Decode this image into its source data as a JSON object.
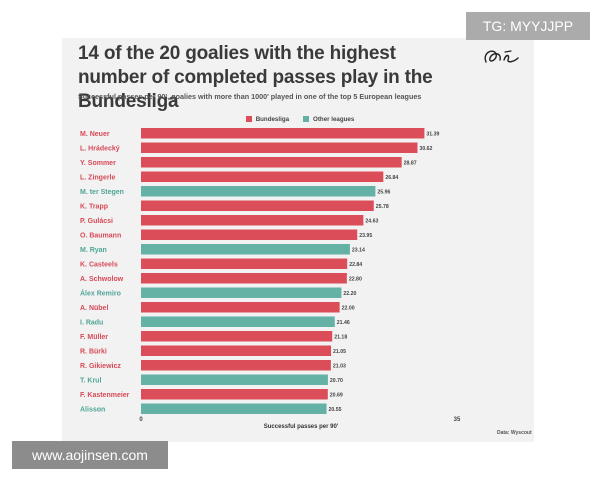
{
  "watermarks": {
    "top_right": "TG: MYYJJPP",
    "bottom_left": "www.aojinsen.com"
  },
  "colors": {
    "bundesliga": "#dc4d5a",
    "other": "#63b2a5",
    "label_bundesliga": "#d64a57",
    "label_other": "#4fa596"
  },
  "chart_data": {
    "type": "bar",
    "orientation": "horizontal",
    "title": "14 of the 20 goalies with the highest number of completed passes play in the Bundesliga",
    "subtitle": "Successful passes per 90', goalies with more than 1000' played in one of the top 5 European leagues",
    "xlabel": "Successful passes per 90'",
    "ylabel": "",
    "xlim": [
      0,
      35
    ],
    "xticks": [
      "0",
      "35"
    ],
    "source": "Data: Wyscout",
    "legend": [
      "Bundesliga",
      "Other leagues"
    ],
    "legend_placement": "top-center",
    "series": [
      {
        "name": "Bundesliga",
        "color_key": "bundesliga"
      },
      {
        "name": "Other leagues",
        "color_key": "other"
      }
    ],
    "categories": [
      "M. Neuer",
      "L. Hrádecký",
      "Y. Sommer",
      "L. Zingerle",
      "M. ter Stegen",
      "K. Trapp",
      "P. Gulácsi",
      "O. Baumann",
      "M. Ryan",
      "K. Casteels",
      "A. Schwolow",
      "Álex Remiro",
      "A. Nübel",
      "I. Radu",
      "F. Müller",
      "R. Bürki",
      "R. Gikiewicz",
      "T. Krul",
      "F. Kastenmeier",
      "Alisson"
    ],
    "values": [
      31.39,
      30.62,
      28.87,
      26.84,
      25.96,
      25.78,
      24.63,
      23.95,
      23.14,
      22.84,
      22.8,
      22.2,
      22.0,
      21.46,
      21.18,
      21.05,
      21.03,
      20.7,
      20.69,
      20.55
    ],
    "value_labels": [
      "31.39",
      "30.62",
      "28.87",
      "26.84",
      "25.96",
      "25.78",
      "24.63",
      "23.95",
      "23.14",
      "22.84",
      "22.80",
      "22.20",
      "22.00",
      "21.46",
      "21.18",
      "21.05",
      "21.03",
      "20.70",
      "20.69",
      "20.55"
    ],
    "league": [
      "Bundesliga",
      "Bundesliga",
      "Bundesliga",
      "Bundesliga",
      "Other leagues",
      "Bundesliga",
      "Bundesliga",
      "Bundesliga",
      "Other leagues",
      "Bundesliga",
      "Bundesliga",
      "Other leagues",
      "Bundesliga",
      "Other leagues",
      "Bundesliga",
      "Bundesliga",
      "Bundesliga",
      "Other leagues",
      "Bundesliga",
      "Other leagues"
    ]
  }
}
